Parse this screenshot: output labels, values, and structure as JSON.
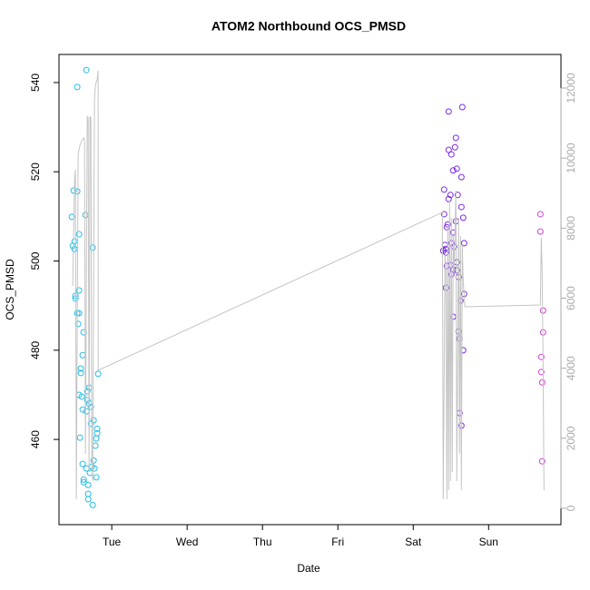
{
  "chart_data": {
    "type": "scatter",
    "title": "ATOM2 Northbound OCS_PMSD",
    "x_label": "Date",
    "y_label": "OCS_PMSD",
    "xlim": [
      0.3,
      6.96
    ],
    "xticks": [
      {
        "value": 1,
        "label": "Tue"
      },
      {
        "value": 2,
        "label": "Wed"
      },
      {
        "value": 3,
        "label": "Thu"
      },
      {
        "value": 4,
        "label": "Fri"
      },
      {
        "value": 5,
        "label": "Sat"
      },
      {
        "value": 6,
        "label": "Sun"
      }
    ],
    "ylim": [
      440.9,
      546.3
    ],
    "yticks": [
      460,
      480,
      500,
      520,
      540
    ],
    "y2lim": [
      -466,
      12959
    ],
    "y2ticks": [
      0,
      2000,
      4000,
      6000,
      8000,
      10000,
      12000
    ],
    "series": [
      {
        "color": "#22bde8",
        "x": [
          0.663,
          0.542,
          0.494,
          0.542,
          0.651,
          0.47,
          0.566,
          0.747,
          0.506,
          0.482,
          0.506,
          0.566,
          0.518,
          0.518,
          0.542,
          0.566,
          0.554,
          0.627,
          0.614,
          0.819,
          0.59,
          0.59,
          0.675,
          0.699,
          0.566,
          0.602,
          0.675,
          0.699,
          0.723,
          0.614,
          0.663,
          0.759,
          0.723,
          0.807,
          0.807,
          0.795,
          0.578,
          0.783,
          0.614,
          0.759,
          0.735,
          0.771,
          0.663,
          0.711,
          0.795,
          0.627,
          0.627,
          0.687,
          0.687,
          0.687,
          0.747
        ],
        "values": [
          542.8,
          539.0,
          515.8,
          515.6,
          510.3,
          509.9,
          506.0,
          503.0,
          504.4,
          503.4,
          502.7,
          493.4,
          492.2,
          491.6,
          488.3,
          488.3,
          485.9,
          484.0,
          478.9,
          474.7,
          475.9,
          474.9,
          470.8,
          471.6,
          470.0,
          469.6,
          468.8,
          468.1,
          467.3,
          466.7,
          466.3,
          464.3,
          463.5,
          462.4,
          461.4,
          460.2,
          460.4,
          458.6,
          454.5,
          455.3,
          453.9,
          453.5,
          453.5,
          452.5,
          451.5,
          451.0,
          450.4,
          449.8,
          447.8,
          446.6,
          445.3
        ]
      },
      {
        "color": "#7a2be0",
        "x": [
          5.651,
          5.47,
          5.566,
          5.554,
          5.47,
          5.506,
          5.53,
          5.578,
          5.639,
          5.41,
          5.494,
          5.47,
          5.59,
          5.639,
          5.41,
          5.663,
          5.566,
          5.458,
          5.446,
          5.53,
          5.675,
          5.506,
          5.542,
          5.422,
          5.434,
          5.398,
          5.434,
          5.578,
          5.494,
          5.446,
          5.53,
          5.578,
          5.506,
          5.602,
          5.434,
          5.675,
          5.627,
          5.53,
          5.602,
          5.614,
          5.663,
          5.614,
          5.639
        ],
        "values": [
          534.5,
          533.5,
          527.6,
          525.5,
          524.9,
          523.9,
          520.3,
          520.7,
          518.8,
          516.0,
          514.8,
          513.9,
          514.8,
          512.1,
          510.5,
          509.7,
          508.9,
          508.2,
          507.6,
          506.4,
          504.0,
          504.0,
          503.2,
          503.6,
          502.7,
          502.3,
          501.9,
          499.7,
          499.1,
          498.9,
          498.1,
          497.9,
          497.0,
          496.4,
          494.0,
          492.6,
          491.1,
          487.5,
          484.2,
          482.6,
          480.0,
          465.9,
          463.1
        ]
      },
      {
        "color": "#cf40d6",
        "x": [
          6.687,
          6.687,
          6.723,
          6.723,
          6.699,
          6.699,
          6.711,
          6.711
        ],
        "values": [
          510.5,
          506.6,
          488.9,
          484.0,
          478.5,
          475.1,
          472.8,
          455.1
        ]
      },
      {
        "type": "line",
        "axis": "y2",
        "color": "#c4c4c4",
        "x": [
          0.482,
          0.506,
          0.518,
          0.53,
          0.554,
          0.578,
          0.602,
          0.627,
          0.639,
          0.651,
          0.675,
          0.687,
          0.699,
          0.711,
          0.723,
          0.735,
          0.747,
          0.771,
          0.783,
          0.795,
          0.807,
          0.819,
          0.82,
          5.386,
          5.398,
          5.422,
          5.434,
          5.446,
          5.458,
          5.47,
          5.482,
          5.494,
          5.506,
          5.518,
          5.53,
          5.542,
          5.566,
          5.578,
          5.602,
          5.614,
          5.627,
          5.639,
          5.651,
          5.663,
          5.687,
          6.687,
          6.699,
          6.711,
          6.723,
          6.735
        ],
        "values": [
          6350,
          9331,
          9668,
          259,
          10109,
          10368,
          10498,
          10575,
          10549,
          1555,
          11197,
          11146,
          1037,
          11197,
          11146,
          1426,
          778,
          11664,
          12053,
          12182,
          12234,
          12493,
          3940,
          8450,
          259,
          7258,
          6739,
          259,
          8035,
          518,
          8813,
          778,
          8294,
          1037,
          7776,
          6739,
          9072,
          778,
          8294,
          1555,
          7776,
          518,
          7517,
          6480,
          5754,
          5806,
          7724,
          6739,
          4147,
          518
        ]
      }
    ]
  }
}
